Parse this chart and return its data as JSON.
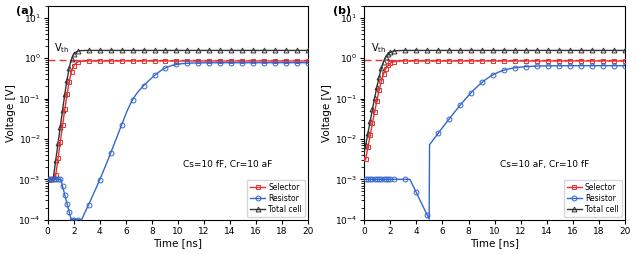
{
  "panels": [
    {
      "label": "(a)",
      "annotation": "Cs=10 fF, Cr=10 aF",
      "sel_t0": 1.8,
      "sel_k": 5.5,
      "sel_plateau": 0.85,
      "sel_start_v": 0.001,
      "sel_start_t": 0.0,
      "tot_t0": 1.75,
      "tot_k": 5.5,
      "tot_plateau": 1.55,
      "tot_start_v": 0.001,
      "tot_start_t": 0.0,
      "res_flat_v": 0.001,
      "res_flat_end": 1.0,
      "res_dip_t": 1.8,
      "res_dip_v": 0.0001,
      "res_step1_t0": 6.5,
      "res_step1_k": 2.5,
      "res_step1_v": 0.12,
      "res_step2_t0": 8.5,
      "res_step2_k": 1.5,
      "res_plateau": 0.65
    },
    {
      "label": "(b)",
      "annotation": "Cs=10 aF, Cr=10 fF",
      "sel_t0": 1.5,
      "sel_k": 4.0,
      "sel_plateau": 0.85,
      "sel_start_v": 0.003,
      "sel_start_t": 0.0,
      "tot_t0": 1.45,
      "tot_k": 4.0,
      "tot_plateau": 1.55,
      "tot_start_v": 0.003,
      "tot_start_t": 0.0,
      "res_flat_v": 0.001,
      "res_flat_end": 3.5,
      "res_dip_t": 5.0,
      "res_dip_v": 0.0001,
      "res_step1_t0": 9.5,
      "res_step1_k": 1.2,
      "res_step1_v": 0.0,
      "res_step2_t0": 9.5,
      "res_step2_k": 1.0,
      "res_plateau": 0.65
    }
  ],
  "vth": 0.9,
  "xlim": [
    0,
    20
  ],
  "ylim": [
    0.0001,
    20
  ],
  "xlabel": "Time [ns]",
  "ylabel": "Voltage [V]",
  "legend_labels": [
    "Selector",
    "Resistor",
    "Total cell"
  ],
  "vth_label": "V$_{\\mathrm{th}}$",
  "xticks": [
    0,
    2,
    4,
    6,
    8,
    10,
    12,
    14,
    16,
    18,
    20
  ],
  "sel_color": "#e63030",
  "res_color": "#3366cc",
  "tot_color": "#333333",
  "lw": 1.0,
  "marker_size": 3.5
}
